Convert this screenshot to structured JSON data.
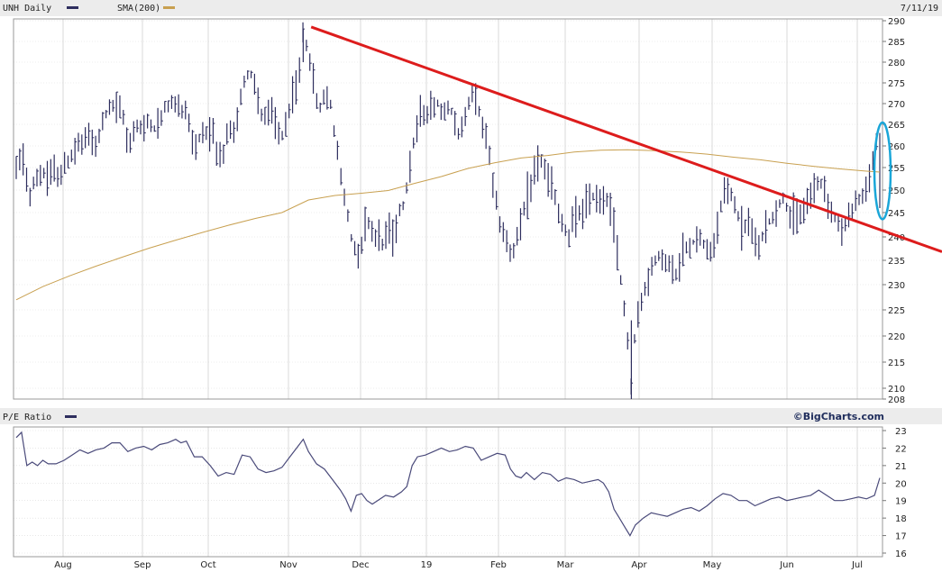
{
  "header": {
    "ticker_label": "UNH Daily",
    "sma_label": "SMA(200)",
    "date": "7/11/19",
    "pe_label": "P/E Ratio",
    "brand": "©BigCharts.com"
  },
  "colors": {
    "price": "#2e2e5e",
    "sma": "#c8a050",
    "pe": "#4a4a7a",
    "trendline": "#dd1c1c",
    "ellipse": "#1aa6d8",
    "grid": "#d9d9d9",
    "panel_border": "#999999",
    "header_bg": "#e8e8e8"
  },
  "chart_data": [
    {
      "type": "ohlc",
      "title": "UNH Daily",
      "price_ticks": [
        290,
        285,
        280,
        275,
        270,
        265,
        260,
        255,
        250,
        245,
        240,
        235,
        230,
        225,
        220,
        215,
        210,
        208
      ],
      "ylim": [
        208,
        290
      ],
      "x_labels": [
        "Aug",
        "Sep",
        "Oct",
        "Nov",
        "Dec",
        "19",
        "Feb",
        "Mar",
        "Apr",
        "May",
        "Jun",
        "Jul"
      ],
      "price_path": [
        [
          0,
          255.5
        ],
        [
          6,
          257
        ],
        [
          10,
          248
        ],
        [
          14,
          253
        ],
        [
          20,
          254
        ],
        [
          24,
          253
        ],
        [
          28,
          255
        ],
        [
          33,
          253
        ],
        [
          37,
          256
        ],
        [
          42,
          258
        ],
        [
          47,
          260
        ],
        [
          52,
          261
        ],
        [
          56,
          262
        ],
        [
          60,
          260
        ],
        [
          64,
          264
        ],
        [
          68,
          268
        ],
        [
          72,
          269
        ],
        [
          76,
          269
        ],
        [
          80,
          268
        ],
        [
          84,
          260
        ],
        [
          88,
          263
        ],
        [
          92,
          265
        ],
        [
          96,
          264
        ],
        [
          100,
          266
        ],
        [
          104,
          264
        ],
        [
          108,
          266
        ],
        [
          112,
          269
        ],
        [
          116,
          270
        ],
        [
          120,
          270
        ],
        [
          124,
          268
        ],
        [
          128,
          269
        ],
        [
          132,
          262
        ],
        [
          136,
          260
        ],
        [
          140,
          264
        ],
        [
          144,
          262
        ],
        [
          148,
          263
        ],
        [
          152,
          256
        ],
        [
          156,
          258
        ],
        [
          160,
          264
        ],
        [
          164,
          263
        ],
        [
          168,
          270
        ],
        [
          172,
          276
        ],
        [
          176,
          278
        ],
        [
          180,
          274
        ],
        [
          184,
          268
        ],
        [
          188,
          266
        ],
        [
          192,
          268
        ],
        [
          196,
          264
        ],
        [
          200,
          262
        ],
        [
          204,
          266
        ],
        [
          208,
          272
        ],
        [
          212,
          275
        ],
        [
          216,
          287
        ],
        [
          220,
          283
        ],
        [
          224,
          275
        ],
        [
          228,
          268
        ],
        [
          232,
          272
        ],
        [
          236,
          271
        ],
        [
          240,
          262
        ],
        [
          244,
          253
        ],
        [
          248,
          247
        ],
        [
          252,
          240
        ],
        [
          256,
          236
        ],
        [
          260,
          238
        ],
        [
          264,
          244
        ],
        [
          268,
          241
        ],
        [
          272,
          240
        ],
        [
          276,
          238
        ],
        [
          280,
          242
        ],
        [
          284,
          240
        ],
        [
          288,
          245
        ],
        [
          292,
          247
        ],
        [
          296,
          256
        ],
        [
          300,
          262
        ],
        [
          304,
          268
        ],
        [
          308,
          268
        ],
        [
          312,
          269
        ],
        [
          316,
          271
        ],
        [
          320,
          268
        ],
        [
          324,
          270
        ],
        [
          328,
          268
        ],
        [
          332,
          262
        ],
        [
          336,
          265
        ],
        [
          340,
          270
        ],
        [
          344,
          273
        ],
        [
          348,
          268
        ],
        [
          352,
          264
        ],
        [
          356,
          258
        ],
        [
          360,
          250
        ],
        [
          364,
          243
        ],
        [
          368,
          240
        ],
        [
          372,
          237
        ],
        [
          376,
          238
        ],
        [
          380,
          243
        ],
        [
          384,
          248
        ],
        [
          388,
          252
        ],
        [
          392,
          256
        ],
        [
          396,
          257
        ],
        [
          400,
          252
        ],
        [
          404,
          251
        ],
        [
          408,
          245
        ],
        [
          412,
          242
        ],
        [
          416,
          240
        ],
        [
          420,
          244
        ],
        [
          424,
          245
        ],
        [
          428,
          247
        ],
        [
          432,
          248
        ],
        [
          436,
          249
        ],
        [
          440,
          248
        ],
        [
          444,
          249
        ],
        [
          447,
          247
        ],
        [
          451,
          240
        ],
        [
          455,
          231
        ],
        [
          459,
          222
        ],
        [
          463,
          210
        ],
        [
          466,
          222
        ],
        [
          470,
          226
        ],
        [
          474,
          230
        ],
        [
          478,
          233
        ],
        [
          482,
          235
        ],
        [
          486,
          236
        ],
        [
          490,
          234
        ],
        [
          494,
          233
        ],
        [
          498,
          232
        ],
        [
          502,
          237
        ],
        [
          506,
          238
        ],
        [
          510,
          239
        ],
        [
          514,
          240
        ],
        [
          518,
          238
        ],
        [
          522,
          236
        ],
        [
          526,
          239
        ],
        [
          530,
          246
        ],
        [
          534,
          250
        ],
        [
          538,
          249
        ],
        [
          542,
          246
        ],
        [
          546,
          242
        ],
        [
          550,
          243
        ],
        [
          554,
          241
        ],
        [
          558,
          237
        ],
        [
          562,
          240
        ],
        [
          566,
          243
        ],
        [
          570,
          244
        ],
        [
          574,
          247
        ],
        [
          578,
          248
        ],
        [
          582,
          245
        ],
        [
          586,
          244
        ],
        [
          590,
          245
        ],
        [
          594,
          247
        ],
        [
          598,
          249
        ],
        [
          602,
          252
        ],
        [
          606,
          251
        ],
        [
          610,
          248
        ],
        [
          614,
          245
        ],
        [
          618,
          243
        ],
        [
          622,
          241
        ],
        [
          626,
          244
        ],
        [
          630,
          246
        ],
        [
          634,
          248
        ],
        [
          638,
          249
        ],
        [
          642,
          252
        ],
        [
          646,
          260
        ],
        [
          650,
          262
        ]
      ],
      "sma_points": [
        [
          0,
          227
        ],
        [
          20,
          229.6
        ],
        [
          40,
          231.8
        ],
        [
          60,
          233.8
        ],
        [
          80,
          235.7
        ],
        [
          100,
          237.6
        ],
        [
          120,
          239.3
        ],
        [
          140,
          240.9
        ],
        [
          160,
          242.4
        ],
        [
          180,
          243.8
        ],
        [
          200,
          245.0
        ],
        [
          220,
          247.8
        ],
        [
          240,
          248.8
        ],
        [
          260,
          249.3
        ],
        [
          280,
          249.9
        ],
        [
          300,
          251.5
        ],
        [
          320,
          253.0
        ],
        [
          340,
          254.8
        ],
        [
          360,
          256.1
        ],
        [
          380,
          257.2
        ],
        [
          400,
          257.8
        ],
        [
          420,
          258.6
        ],
        [
          440,
          259.0
        ],
        [
          460,
          259.1
        ],
        [
          480,
          258.9
        ],
        [
          500,
          258.6
        ],
        [
          520,
          258.1
        ],
        [
          540,
          257.4
        ],
        [
          560,
          256.8
        ],
        [
          580,
          256.0
        ],
        [
          600,
          255.3
        ],
        [
          620,
          254.7
        ],
        [
          640,
          254.2
        ],
        [
          650,
          254.0
        ]
      ],
      "trendline": {
        "start": [
          222,
          288.5
        ],
        "end": [
          650,
          241.5
        ]
      },
      "annotation": "ellipse-around-latest-bar"
    },
    {
      "type": "line",
      "title": "P/E Ratio",
      "ylim": [
        16,
        23
      ],
      "y_ticks": [
        23,
        22,
        21,
        20,
        19,
        18,
        17,
        16
      ],
      "series": [
        {
          "name": "P/E Ratio",
          "x_scale": "same-as-price",
          "values": [
            [
              0,
              22.6
            ],
            [
              4,
              22.9
            ],
            [
              8,
              21.0
            ],
            [
              12,
              21.2
            ],
            [
              16,
              21.0
            ],
            [
              20,
              21.3
            ],
            [
              24,
              21.1
            ],
            [
              30,
              21.1
            ],
            [
              36,
              21.3
            ],
            [
              42,
              21.6
            ],
            [
              48,
              21.9
            ],
            [
              54,
              21.7
            ],
            [
              60,
              21.9
            ],
            [
              66,
              22.0
            ],
            [
              72,
              22.3
            ],
            [
              78,
              22.3
            ],
            [
              84,
              21.8
            ],
            [
              90,
              22.0
            ],
            [
              96,
              22.1
            ],
            [
              102,
              21.9
            ],
            [
              108,
              22.2
            ],
            [
              114,
              22.3
            ],
            [
              120,
              22.5
            ],
            [
              124,
              22.3
            ],
            [
              128,
              22.4
            ],
            [
              134,
              21.5
            ],
            [
              140,
              21.5
            ],
            [
              146,
              21.0
            ],
            [
              152,
              20.4
            ],
            [
              158,
              20.6
            ],
            [
              164,
              20.5
            ],
            [
              170,
              21.6
            ],
            [
              176,
              21.5
            ],
            [
              182,
              20.8
            ],
            [
              188,
              20.6
            ],
            [
              194,
              20.7
            ],
            [
              200,
              20.9
            ],
            [
              206,
              21.5
            ],
            [
              212,
              22.1
            ],
            [
              216,
              22.5
            ],
            [
              220,
              21.8
            ],
            [
              226,
              21.1
            ],
            [
              232,
              20.8
            ],
            [
              238,
              20.2
            ],
            [
              244,
              19.6
            ],
            [
              248,
              19.1
            ],
            [
              252,
              18.4
            ],
            [
              256,
              19.3
            ],
            [
              260,
              19.4
            ],
            [
              264,
              19.0
            ],
            [
              268,
              18.8
            ],
            [
              272,
              19.0
            ],
            [
              278,
              19.3
            ],
            [
              284,
              19.2
            ],
            [
              290,
              19.5
            ],
            [
              294,
              19.8
            ],
            [
              298,
              21.0
            ],
            [
              302,
              21.5
            ],
            [
              308,
              21.6
            ],
            [
              314,
              21.8
            ],
            [
              320,
              22.0
            ],
            [
              326,
              21.8
            ],
            [
              332,
              21.9
            ],
            [
              338,
              22.1
            ],
            [
              344,
              22.0
            ],
            [
              350,
              21.3
            ],
            [
              356,
              21.5
            ],
            [
              362,
              21.7
            ],
            [
              368,
              21.6
            ],
            [
              372,
              20.8
            ],
            [
              376,
              20.4
            ],
            [
              380,
              20.3
            ],
            [
              384,
              20.6
            ],
            [
              390,
              20.2
            ],
            [
              396,
              20.6
            ],
            [
              402,
              20.5
            ],
            [
              408,
              20.1
            ],
            [
              414,
              20.3
            ],
            [
              420,
              20.2
            ],
            [
              426,
              20.0
            ],
            [
              432,
              20.1
            ],
            [
              438,
              20.2
            ],
            [
              442,
              20.0
            ],
            [
              446,
              19.5
            ],
            [
              450,
              18.5
            ],
            [
              454,
              18.0
            ],
            [
              458,
              17.5
            ],
            [
              462,
              17.0
            ],
            [
              466,
              17.6
            ],
            [
              472,
              18.0
            ],
            [
              478,
              18.3
            ],
            [
              484,
              18.2
            ],
            [
              490,
              18.1
            ],
            [
              496,
              18.3
            ],
            [
              502,
              18.5
            ],
            [
              508,
              18.6
            ],
            [
              514,
              18.4
            ],
            [
              520,
              18.7
            ],
            [
              526,
              19.1
            ],
            [
              532,
              19.4
            ],
            [
              538,
              19.3
            ],
            [
              544,
              19.0
            ],
            [
              550,
              19.0
            ],
            [
              556,
              18.7
            ],
            [
              562,
              18.9
            ],
            [
              568,
              19.1
            ],
            [
              574,
              19.2
            ],
            [
              580,
              19.0
            ],
            [
              586,
              19.1
            ],
            [
              592,
              19.2
            ],
            [
              598,
              19.3
            ],
            [
              604,
              19.6
            ],
            [
              610,
              19.3
            ],
            [
              616,
              19.0
            ],
            [
              622,
              19.0
            ],
            [
              628,
              19.1
            ],
            [
              634,
              19.2
            ],
            [
              640,
              19.1
            ],
            [
              646,
              19.3
            ],
            [
              650,
              20.3
            ]
          ]
        }
      ]
    }
  ]
}
